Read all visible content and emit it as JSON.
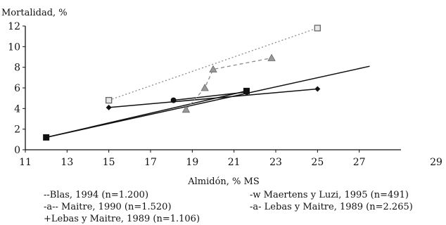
{
  "chart_data": {
    "type": "line",
    "ylabel": "Mortalidad, %",
    "xlabel": "Almidón, % MS",
    "x_ticks": [
      11,
      13,
      15,
      17,
      19,
      21,
      23,
      25,
      27,
      29
    ],
    "y_ticks": [
      0,
      2,
      4,
      6,
      8,
      10,
      12
    ],
    "xlim": [
      11,
      29
    ],
    "ylim": [
      0,
      12
    ],
    "grid": false,
    "legend_position": "bottom",
    "legend_entries": [
      "--Blas, 1994 (n=1.200)",
      "-w Maertens y Luzi, 1995 (n=491)",
      "-a-- Maitre, 1990 (n=1.520)",
      "-a- Lebas y Maitre, 1989 (n=2.265)",
      "+Lebas y Maitre, 1989 (n=1.106)"
    ],
    "series": [
      {
        "id": "lebas-maitre-1106-regression",
        "style": "solid",
        "color": "#111111",
        "marker": "none",
        "points": [
          [
            12,
            1.2
          ],
          [
            27.5,
            8.1
          ]
        ]
      },
      {
        "id": "lebas-maitre-1106",
        "style": "solid",
        "color": "#111111",
        "marker": "square-filled",
        "points": [
          [
            12,
            1.2
          ],
          [
            21.6,
            5.7
          ]
        ]
      },
      {
        "id": "maertens-luzi-1995",
        "style": "solid",
        "color": "#111111",
        "marker": "diamond-filled",
        "points": [
          [
            15,
            4.1
          ],
          [
            25,
            5.9
          ]
        ]
      },
      {
        "id": "maitre-1990",
        "style": "solid",
        "color": "#111111",
        "marker": "circle-filled",
        "points": [
          [
            18.1,
            4.8
          ],
          [
            21.6,
            5.6
          ]
        ]
      },
      {
        "id": "blas-1994",
        "style": "dotted",
        "color": "#8a8a8a",
        "marker": "square-open",
        "points": [
          [
            15,
            4.8
          ],
          [
            25,
            11.8
          ]
        ]
      },
      {
        "id": "lebas-maitre-2265",
        "style": "dashed",
        "color": "#8a8a8a",
        "marker": "triangle-gray",
        "points": [
          [
            18.7,
            3.9
          ],
          [
            19.6,
            6.0
          ],
          [
            20.0,
            7.8
          ],
          [
            22.8,
            8.9
          ]
        ]
      }
    ]
  }
}
